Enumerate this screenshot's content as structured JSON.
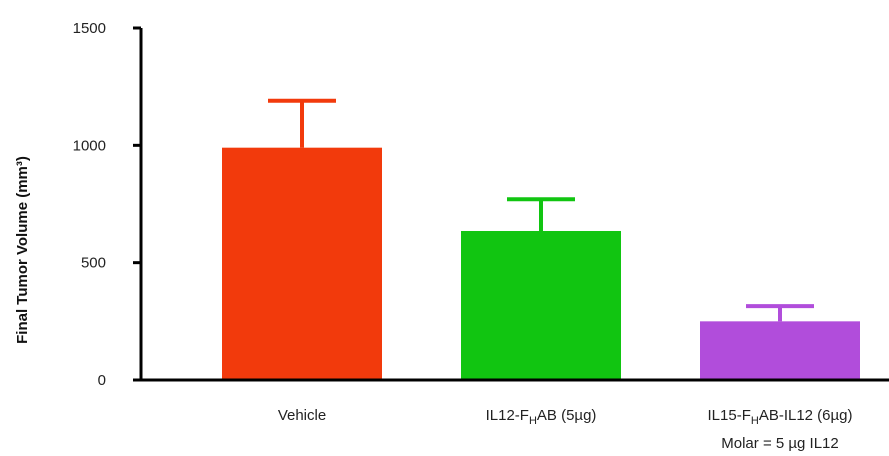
{
  "chart_data": {
    "type": "bar",
    "title": "",
    "ylabel": "Final Tumor Volume (mm³)",
    "xlabel": "",
    "ylim": [
      0,
      1500
    ],
    "yticks": [
      0,
      500,
      1000,
      1500
    ],
    "grid": false,
    "categories": [
      {
        "label": "Vehicle",
        "sublabel": "",
        "subscript": "",
        "after": "",
        "line2": ""
      },
      {
        "label": "IL12-F",
        "subscript": "H",
        "after": "AB (5µg)",
        "line2": ""
      },
      {
        "label": "IL15-F",
        "subscript": "H",
        "after": "AB-IL12 (6µg)",
        "line2": "Molar = 5 µg IL12"
      }
    ],
    "values": [
      990,
      635,
      250
    ],
    "error_upper": [
      1190,
      770,
      315
    ],
    "colors": [
      "#f23a0c",
      "#11c511",
      "#b14ddb"
    ]
  }
}
